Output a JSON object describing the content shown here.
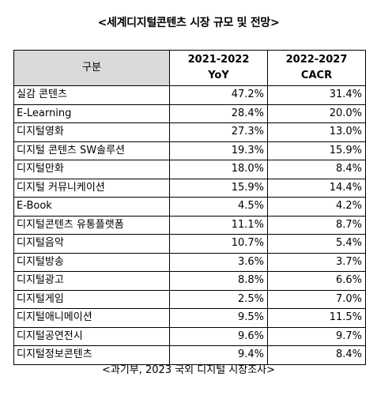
{
  "title": "<세계디지털콘텐츠 시장 규모 및 전망>",
  "table": {
    "headers": {
      "category": "구분",
      "col1_line1": "2021-2022",
      "col1_line2": "YoY",
      "col2_line1": "2022-2027",
      "col2_line2": "CACR"
    },
    "rows": [
      {
        "name": "실감 콘텐츠",
        "yoy": "47.2%",
        "cacr": "31.4%"
      },
      {
        "name": "E-Learning",
        "yoy": "28.4%",
        "cacr": "20.0%"
      },
      {
        "name": "디지털영화",
        "yoy": "27.3%",
        "cacr": "13.0%"
      },
      {
        "name": "디지털 콘텐츠 SW솔루션",
        "yoy": "19.3%",
        "cacr": "15.9%"
      },
      {
        "name": "디지털만화",
        "yoy": "18.0%",
        "cacr": "8.4%"
      },
      {
        "name": "디지털 커뮤니케이션",
        "yoy": "15.9%",
        "cacr": "14.4%"
      },
      {
        "name": "E-Book",
        "yoy": "4.5%",
        "cacr": "4.2%"
      },
      {
        "name": "디지털콘텐츠 유통플랫폼",
        "yoy": "11.1%",
        "cacr": "8.7%"
      },
      {
        "name": "디지털음악",
        "yoy": "10.7%",
        "cacr": "5.4%"
      },
      {
        "name": "디지털방송",
        "yoy": "3.6%",
        "cacr": "3.7%"
      },
      {
        "name": "디지털광고",
        "yoy": "8.8%",
        "cacr": "6.6%"
      },
      {
        "name": "디지털게임",
        "yoy": "2.5%",
        "cacr": "7.0%"
      },
      {
        "name": "디지털애니메이션",
        "yoy": "9.5%",
        "cacr": "11.5%"
      },
      {
        "name": "디지털공연전시",
        "yoy": "9.6%",
        "cacr": "9.7%"
      },
      {
        "name": "디지털정보콘텐츠",
        "yoy": "9.4%",
        "cacr": "8.4%"
      }
    ]
  },
  "source": "<과기부, 2023 국외 디지털 시장조사>",
  "colors": {
    "header_label_bg": "#d9d9d9",
    "border": "#000000"
  }
}
